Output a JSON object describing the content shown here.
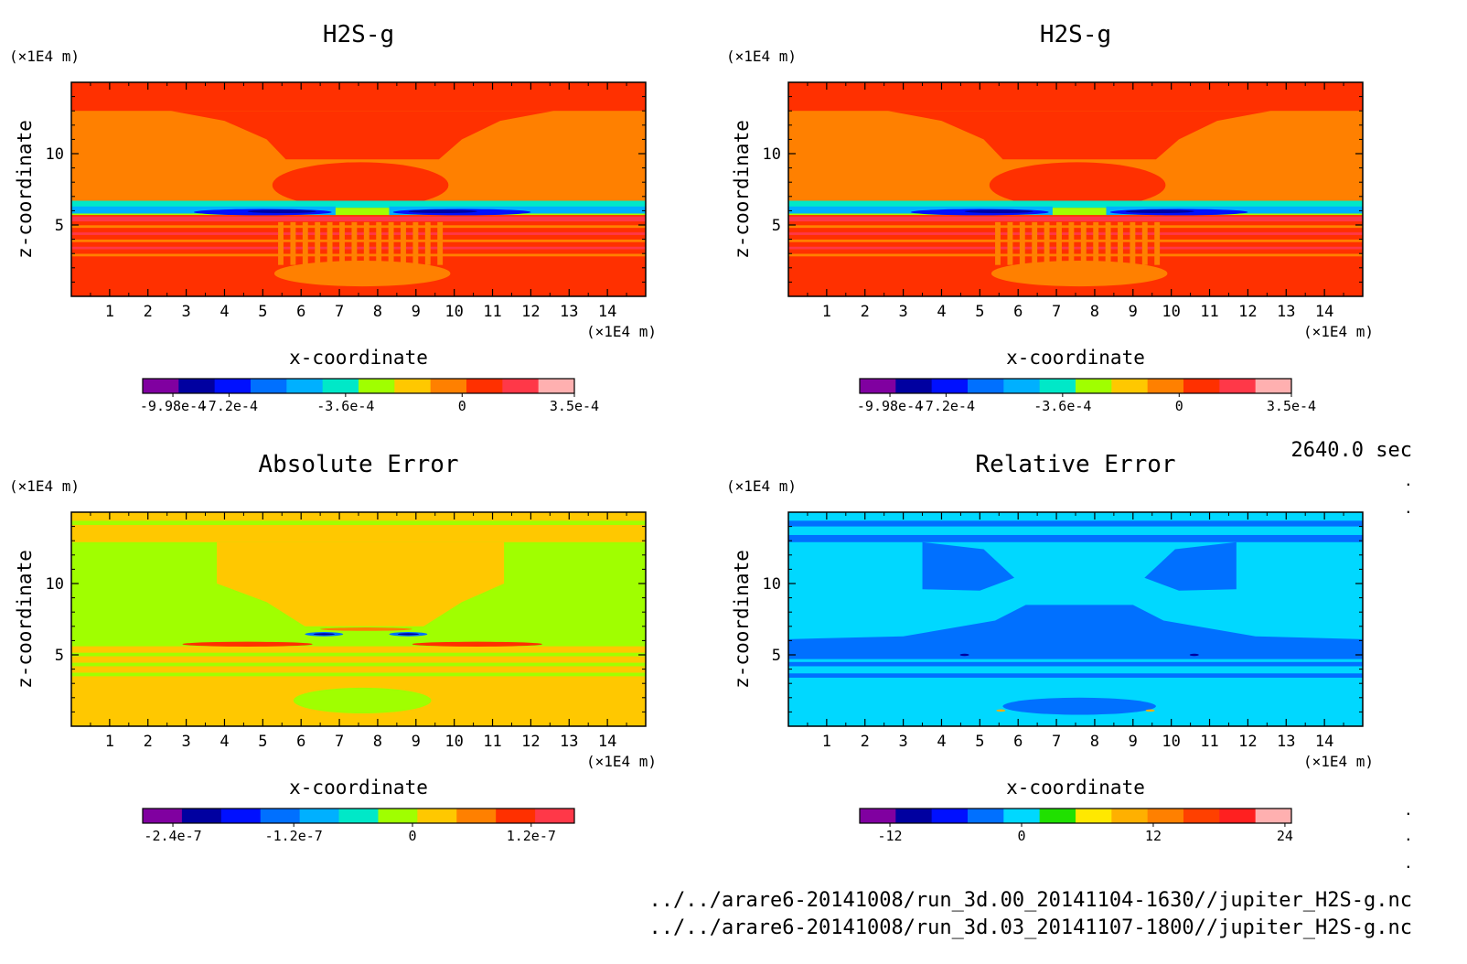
{
  "time_label": "2640.0 sec",
  "files": [
    "../../arare6-20141008/run_3d.00_20141104-1630//jupiter_H2S-g.nc",
    "../../arare6-20141008/run_3d.03_20141107-1800//jupiter_H2S-g.nc"
  ],
  "chart_data": [
    {
      "type": "heatmap",
      "title": "H2S-g",
      "xlabel": "x-coordinate",
      "ylabel": "z-coordinate",
      "x_unit": "(×1E4 m)",
      "y_unit": "(×1E4 m)",
      "xlim": [
        0,
        15
      ],
      "ylim": [
        0,
        15
      ],
      "x_ticks": [
        1,
        2,
        3,
        4,
        5,
        6,
        7,
        8,
        9,
        10,
        11,
        12,
        13,
        14
      ],
      "y_ticks": [
        5,
        10
      ],
      "colorbar": {
        "colors": [
          "#8000a0",
          "#0000a0",
          "#0010ff",
          "#0070ff",
          "#00b0ff",
          "#00e8c8",
          "#a0ff00",
          "#ffc800",
          "#ff8000",
          "#ff3000",
          "#ff3848",
          "#ffb0b0"
        ],
        "tick_labels": [
          "-9.98e-4",
          "-7.2e-4",
          "-3.6e-4",
          "0",
          "3.5e-4"
        ]
      }
    },
    {
      "type": "heatmap",
      "title": "H2S-g",
      "xlabel": "x-coordinate",
      "ylabel": "z-coordinate",
      "x_unit": "(×1E4 m)",
      "y_unit": "(×1E4 m)",
      "xlim": [
        0,
        15
      ],
      "ylim": [
        0,
        15
      ],
      "x_ticks": [
        1,
        2,
        3,
        4,
        5,
        6,
        7,
        8,
        9,
        10,
        11,
        12,
        13,
        14
      ],
      "y_ticks": [
        5,
        10
      ],
      "colorbar": {
        "colors": [
          "#8000a0",
          "#0000a0",
          "#0010ff",
          "#0070ff",
          "#00b0ff",
          "#00e8c8",
          "#a0ff00",
          "#ffc800",
          "#ff8000",
          "#ff3000",
          "#ff3848",
          "#ffb0b0"
        ],
        "tick_labels": [
          "-9.98e-4",
          "-7.2e-4",
          "-3.6e-4",
          "0",
          "3.5e-4"
        ]
      }
    },
    {
      "type": "heatmap",
      "title": "Absolute Error",
      "xlabel": "x-coordinate",
      "ylabel": "z-coordinate",
      "x_unit": "(×1E4 m)",
      "y_unit": "(×1E4 m)",
      "xlim": [
        0,
        15
      ],
      "ylim": [
        0,
        15
      ],
      "x_ticks": [
        1,
        2,
        3,
        4,
        5,
        6,
        7,
        8,
        9,
        10,
        11,
        12,
        13,
        14
      ],
      "y_ticks": [
        5,
        10
      ],
      "colorbar": {
        "colors": [
          "#8000a0",
          "#0000a0",
          "#0010ff",
          "#0070ff",
          "#00b0ff",
          "#00e8c8",
          "#a0ff00",
          "#ffc800",
          "#ff8000",
          "#ff3000",
          "#ff3848"
        ],
        "tick_labels": [
          "-2.4e-7",
          "-1.2e-7",
          "0",
          "1.2e-7"
        ]
      }
    },
    {
      "type": "heatmap",
      "title": "Relative Error",
      "xlabel": "x-coordinate",
      "ylabel": "z-coordinate",
      "x_unit": "(×1E4 m)",
      "y_unit": "(×1E4 m)",
      "xlim": [
        0,
        15
      ],
      "ylim": [
        0,
        15
      ],
      "x_ticks": [
        1,
        2,
        3,
        4,
        5,
        6,
        7,
        8,
        9,
        10,
        11,
        12,
        13,
        14
      ],
      "y_ticks": [
        5,
        10
      ],
      "colorbar": {
        "colors": [
          "#8000a0",
          "#0000a0",
          "#0010ff",
          "#0070ff",
          "#00d8ff",
          "#20e000",
          "#ffe800",
          "#ffb000",
          "#ff8000",
          "#ff4000",
          "#ff2020",
          "#ffb0b0"
        ],
        "tick_labels": [
          "-12",
          "0",
          "12",
          "24"
        ]
      }
    }
  ]
}
